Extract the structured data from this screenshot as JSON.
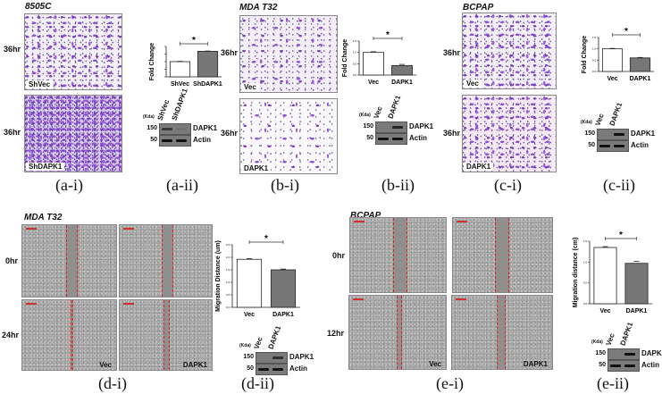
{
  "panels": {
    "a": {
      "cell_line": "8505C",
      "caption_i": "(a-i)",
      "caption_ii": "(a-ii)",
      "images": [
        {
          "time": "36hr",
          "label": "ShVec"
        },
        {
          "time": "36hr",
          "label": "ShDAPK1"
        }
      ],
      "blot": {
        "kda_label": "(Kda)",
        "lanes": [
          "ShVec",
          "ShDAPK1"
        ],
        "rows": [
          {
            "marker": "150",
            "protein": "DAPK1",
            "band_intensity": [
              0.6,
              0.1
            ]
          },
          {
            "marker": "50",
            "protein": "Actin",
            "band_intensity": [
              1,
              1
            ]
          }
        ]
      }
    },
    "b": {
      "cell_line": "MDA T32",
      "caption_i": "(b-i)",
      "caption_ii": "(b-ii)",
      "images": [
        {
          "time": "36hr",
          "label": "Vec"
        },
        {
          "time": "36hr",
          "label": "DAPK1"
        }
      ],
      "blot": {
        "kda_label": "(Kda)",
        "lanes": [
          "Vec",
          "DAPK1"
        ],
        "rows": [
          {
            "marker": "150",
            "protein": "DAPK1",
            "band_intensity": [
              0,
              0.8
            ]
          },
          {
            "marker": "50",
            "protein": "Actin",
            "band_intensity": [
              1,
              1
            ]
          }
        ]
      }
    },
    "c": {
      "cell_line": "BCPAP",
      "caption_i": "(c-i)",
      "caption_ii": "(c-ii)",
      "images": [
        {
          "time": "36hr",
          "label": "Vec"
        },
        {
          "time": "36hr",
          "label": "DAPK1"
        }
      ],
      "blot": {
        "kda_label": "(Kda)",
        "lanes": [
          "Vec",
          "DAPK1"
        ],
        "rows": [
          {
            "marker": "150",
            "protein": "DAPK1",
            "band_intensity": [
              0,
              1
            ]
          },
          {
            "marker": "50",
            "protein": "Actin",
            "band_intensity": [
              1,
              1
            ]
          }
        ]
      }
    },
    "d": {
      "cell_line": "MDA T32",
      "caption_i": "(d-i)",
      "caption_ii": "(d-ii)",
      "times": [
        "0hr",
        "24hr"
      ],
      "conditions": [
        "Vec",
        "DAPK1"
      ],
      "blot": {
        "kda_label": "(Kda)",
        "lanes": [
          "Vec",
          "DAPK1"
        ],
        "rows": [
          {
            "marker": "150",
            "protein": "DAPK1",
            "band_intensity": [
              0,
              0.7
            ]
          },
          {
            "marker": "50",
            "protein": "Actin",
            "band_intensity": [
              1,
              1
            ]
          }
        ]
      }
    },
    "e": {
      "cell_line": "BCPAP",
      "caption_i": "(e-i)",
      "caption_ii": "(e-ii)",
      "times": [
        "0hr",
        "12hr"
      ],
      "conditions": [
        "Vec",
        "DAPK1"
      ],
      "blot": {
        "kda_label": "(Kda)",
        "lanes": [
          "Vec",
          "DAPK1"
        ],
        "rows": [
          {
            "marker": "150",
            "protein": "DAPK1",
            "band_intensity": [
              0,
              1
            ]
          },
          {
            "marker": "50",
            "protein": "Actin",
            "band_intensity": [
              1,
              1
            ]
          }
        ]
      }
    }
  },
  "chart_data": [
    {
      "id": "a-ii",
      "type": "bar",
      "categories": [
        "ShVec",
        "ShDAPK1"
      ],
      "values": [
        1.0,
        1.68
      ],
      "errors": [
        0.02,
        0.02
      ],
      "ylabel": "Fold Change",
      "ylim": [
        0,
        2.0
      ],
      "yticks": [],
      "significance": "*",
      "colors": [
        "#ffffff",
        "#777777"
      ]
    },
    {
      "id": "b-ii",
      "type": "bar",
      "categories": [
        "Vec",
        "DAPK1"
      ],
      "values": [
        1.0,
        0.42
      ],
      "errors": [
        0.03,
        0.05
      ],
      "ylabel": "Fold Change",
      "ylim": [
        0,
        1.5
      ],
      "yticks": [
        "0.0",
        "0.5",
        "1.0",
        "1.5"
      ],
      "significance": "*",
      "colors": [
        "#ffffff",
        "#777777"
      ]
    },
    {
      "id": "c-ii",
      "type": "bar",
      "categories": [
        "Vec",
        "DAPK1"
      ],
      "values": [
        1.0,
        0.6
      ],
      "errors": [
        0.02,
        0.02
      ],
      "ylabel": "Fold Change",
      "ylim": [
        0,
        1.5
      ],
      "yticks": [
        "0.0",
        "0.5",
        "1.0",
        "1.5"
      ],
      "significance": "*",
      "colors": [
        "#ffffff",
        "#777777"
      ]
    },
    {
      "id": "d-ii",
      "type": "bar",
      "categories": [
        "Vec",
        "DAPK1"
      ],
      "values": [
        1.92,
        1.5
      ],
      "errors": [
        0.03,
        0.03
      ],
      "ylabel": "Migration Distance (um)",
      "ylim": [
        0,
        2.5
      ],
      "yticks": [
        "0.0",
        "0.5",
        "1.0",
        "1.5",
        "2.0",
        "2.5"
      ],
      "significance": "*",
      "colors": [
        "#ffffff",
        "#777777"
      ]
    },
    {
      "id": "e-ii",
      "type": "bar",
      "categories": [
        "Vec",
        "DAPK1"
      ],
      "values": [
        1.35,
        0.97
      ],
      "errors": [
        0.02,
        0.05
      ],
      "ylabel": "Migration distance (cm)",
      "ylim": [
        0,
        1.5
      ],
      "yticks": [
        "0.0",
        "0.5",
        "1.0",
        "1.5"
      ],
      "significance": "*",
      "colors": [
        "#ffffff",
        "#777777"
      ]
    }
  ]
}
